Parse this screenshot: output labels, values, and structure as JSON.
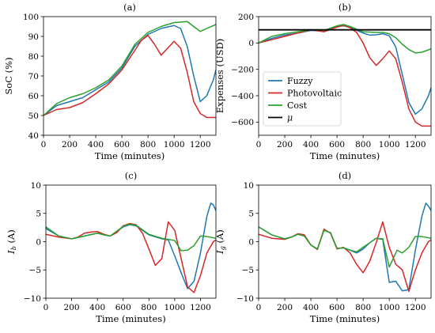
{
  "chart_data": [
    {
      "type": "line",
      "title": "(a)",
      "xlabel": "Time (minutes)",
      "ylabel": "SoC (%)",
      "xlim": [
        0,
        1320
      ],
      "ylim": [
        40,
        100
      ],
      "xticks": [
        0,
        200,
        400,
        600,
        800,
        1000,
        1200
      ],
      "yticks": [
        40,
        50,
        60,
        70,
        80,
        90,
        100
      ],
      "series": [
        {
          "name": "Fuzzy",
          "color": "#1f77b4",
          "x": [
            0,
            100,
            200,
            300,
            400,
            500,
            600,
            700,
            800,
            900,
            1000,
            1050,
            1100,
            1150,
            1200,
            1250,
            1300,
            1320
          ],
          "y": [
            50,
            55,
            57,
            59,
            63,
            67,
            74,
            85,
            91,
            94,
            95.5,
            94,
            85,
            70,
            57,
            60,
            68,
            73
          ]
        },
        {
          "name": "Photovoltaic",
          "color": "#d62728",
          "x": [
            0,
            100,
            200,
            300,
            400,
            500,
            600,
            700,
            750,
            800,
            850,
            900,
            950,
            1000,
            1050,
            1100,
            1150,
            1200,
            1250,
            1300,
            1320
          ],
          "y": [
            50,
            53,
            54,
            56.5,
            61,
            66,
            73,
            83,
            88,
            90.5,
            86,
            80.5,
            84,
            87.5,
            84,
            72,
            57,
            51,
            49,
            49,
            49
          ]
        },
        {
          "name": "Cost",
          "color": "#2ca02c",
          "x": [
            0,
            100,
            200,
            300,
            400,
            500,
            600,
            700,
            800,
            900,
            1000,
            1100,
            1150,
            1200,
            1250,
            1320
          ],
          "y": [
            50,
            56,
            59,
            61,
            64,
            68,
            75,
            86,
            92,
            95,
            97,
            97.5,
            95,
            92.5,
            94,
            96
          ]
        }
      ]
    },
    {
      "type": "line",
      "title": "(b)",
      "xlabel": "Time (minutes)",
      "ylabel": "Expenses (USD)",
      "xlim": [
        0,
        1320
      ],
      "ylim": [
        -700,
        200
      ],
      "xticks": [
        0,
        200,
        400,
        600,
        800,
        1000,
        1200
      ],
      "yticks": [
        -600,
        -400,
        -200,
        0,
        200
      ],
      "legend": "center-left",
      "series": [
        {
          "name": "Fuzzy",
          "color": "#1f77b4",
          "x": [
            0,
            100,
            200,
            300,
            400,
            500,
            600,
            650,
            700,
            800,
            850,
            900,
            950,
            1000,
            1050,
            1100,
            1150,
            1200,
            1250,
            1300,
            1320
          ],
          "y": [
            0,
            35,
            60,
            75,
            95,
            90,
            125,
            130,
            118,
            75,
            60,
            62,
            70,
            55,
            -30,
            -240,
            -450,
            -540,
            -500,
            -400,
            -340
          ]
        },
        {
          "name": "Photovoltaic",
          "color": "#d62728",
          "x": [
            0,
            100,
            200,
            300,
            400,
            500,
            600,
            650,
            700,
            750,
            800,
            850,
            900,
            950,
            1000,
            1050,
            1100,
            1150,
            1200,
            1250,
            1300,
            1320
          ],
          "y": [
            0,
            25,
            50,
            75,
            100,
            85,
            120,
            135,
            115,
            80,
            0,
            -110,
            -170,
            -120,
            -60,
            -120,
            -300,
            -500,
            -600,
            -630,
            -630,
            -630
          ]
        },
        {
          "name": "Cost",
          "color": "#2ca02c",
          "x": [
            0,
            100,
            200,
            300,
            400,
            500,
            600,
            650,
            700,
            800,
            900,
            950,
            1000,
            1050,
            1100,
            1150,
            1200,
            1250,
            1320
          ],
          "y": [
            0,
            50,
            70,
            85,
            100,
            95,
            130,
            140,
            125,
            85,
            80,
            80,
            70,
            40,
            -10,
            -50,
            -75,
            -70,
            -45
          ]
        },
        {
          "name": "μ",
          "color": "#000000",
          "x": [
            0,
            1320
          ],
          "y": [
            100,
            100
          ]
        }
      ]
    },
    {
      "type": "line",
      "title": "(c)",
      "xlabel": "Time (minutes)",
      "ylabel": "I_b (A)",
      "xlim": [
        0,
        1320
      ],
      "ylim": [
        -10,
        10
      ],
      "xticks": [
        0,
        200,
        400,
        600,
        800,
        1000,
        1200
      ],
      "yticks": [
        -10,
        -5,
        0,
        5,
        10
      ],
      "series": [
        {
          "name": "Fuzzy",
          "color": "#1f77b4",
          "x": [
            0,
            100,
            200,
            300,
            400,
            450,
            500,
            600,
            650,
            700,
            800,
            900,
            950,
            1000,
            1050,
            1100,
            1150,
            1200,
            1250,
            1280,
            1300,
            1320
          ],
          "y": [
            2.3,
            1.0,
            0.5,
            1.0,
            1.5,
            1.2,
            1.0,
            2.6,
            3.0,
            2.8,
            1.2,
            0.5,
            0.3,
            -2.5,
            -5.5,
            -8.3,
            -7.0,
            -2.0,
            4.5,
            6.8,
            6.5,
            5.5
          ]
        },
        {
          "name": "Photovoltaic",
          "color": "#d62728",
          "x": [
            0,
            100,
            200,
            250,
            300,
            350,
            400,
            450,
            500,
            550,
            600,
            650,
            700,
            750,
            800,
            850,
            900,
            950,
            1000,
            1050,
            1100,
            1150,
            1200,
            1250,
            1300,
            1320
          ],
          "y": [
            1.3,
            0.8,
            0.5,
            0.8,
            1.5,
            1.7,
            1.8,
            1.3,
            1.0,
            1.6,
            2.8,
            3.2,
            3.0,
            1.5,
            -1.3,
            -4.2,
            -3.0,
            3.5,
            2.0,
            -3.0,
            -8.0,
            -9.0,
            -6.0,
            -2.0,
            0.0,
            0.3
          ]
        },
        {
          "name": "Cost",
          "color": "#2ca02c",
          "x": [
            0,
            100,
            200,
            300,
            400,
            450,
            500,
            600,
            650,
            700,
            800,
            900,
            1000,
            1050,
            1100,
            1150,
            1200,
            1250,
            1320
          ],
          "y": [
            2.6,
            1.0,
            0.5,
            1.0,
            1.5,
            1.2,
            1.0,
            2.7,
            3.1,
            2.9,
            1.3,
            0.6,
            0.2,
            -1.6,
            -1.5,
            -0.7,
            1.0,
            0.9,
            0.6
          ]
        }
      ]
    },
    {
      "type": "line",
      "title": "(d)",
      "xlabel": "Time (minutes)",
      "ylabel": "I_g (A)",
      "xlim": [
        0,
        1320
      ],
      "ylim": [
        -10,
        10
      ],
      "xticks": [
        0,
        200,
        400,
        600,
        800,
        1000,
        1200
      ],
      "yticks": [
        -10,
        -5,
        0,
        5,
        10
      ],
      "series": [
        {
          "name": "Fuzzy",
          "color": "#1f77b4",
          "x": [
            0,
            100,
            200,
            250,
            300,
            350,
            400,
            450,
            500,
            550,
            600,
            650,
            700,
            750,
            800,
            850,
            900,
            950,
            1000,
            1050,
            1100,
            1150,
            1200,
            1250,
            1280,
            1300,
            1320
          ],
          "y": [
            2.6,
            1.2,
            0.5,
            0.8,
            1.3,
            1.0,
            -0.6,
            -1.3,
            2.0,
            1.6,
            -1.2,
            -1.1,
            -1.5,
            -2.0,
            -1.3,
            -0.2,
            0.6,
            0.4,
            -7.2,
            -7.0,
            -8.7,
            -8.5,
            -1.5,
            4.5,
            6.8,
            6.3,
            5.5
          ]
        },
        {
          "name": "Photovoltaic",
          "color": "#d62728",
          "x": [
            0,
            100,
            200,
            250,
            300,
            350,
            400,
            450,
            500,
            550,
            600,
            650,
            700,
            750,
            800,
            850,
            900,
            950,
            1000,
            1050,
            1100,
            1150,
            1200,
            1250,
            1300,
            1320
          ],
          "y": [
            1.3,
            0.6,
            0.4,
            0.8,
            1.4,
            1.2,
            -0.6,
            -1.4,
            2.2,
            1.5,
            -1.3,
            -1.0,
            -2.0,
            -4.0,
            -5.5,
            -3.5,
            -0.2,
            3.5,
            -1.0,
            -4.0,
            -5.0,
            -8.8,
            -5.0,
            -2.0,
            0.0,
            0.3
          ]
        },
        {
          "name": "Cost",
          "color": "#2ca02c",
          "x": [
            0,
            100,
            200,
            250,
            300,
            350,
            400,
            450,
            500,
            550,
            600,
            650,
            700,
            750,
            800,
            850,
            900,
            950,
            1000,
            1030,
            1060,
            1100,
            1150,
            1200,
            1250,
            1320
          ],
          "y": [
            2.6,
            1.2,
            0.5,
            0.8,
            1.3,
            1.0,
            -0.6,
            -1.3,
            2.0,
            1.6,
            -1.2,
            -1.1,
            -1.5,
            -1.8,
            -1.0,
            -0.2,
            0.6,
            0.5,
            -4.5,
            -3.0,
            -1.5,
            -2.0,
            -1.0,
            0.9,
            0.9,
            0.6
          ]
        }
      ]
    }
  ]
}
